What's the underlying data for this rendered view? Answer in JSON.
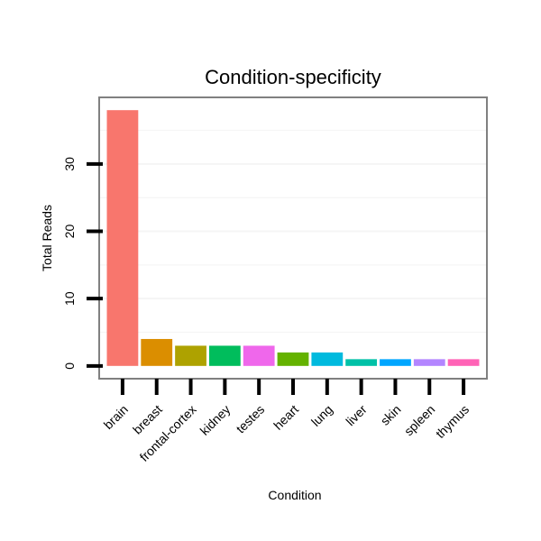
{
  "chart_data": {
    "type": "bar",
    "title": "Condition-specificity",
    "xlabel": "Condition",
    "ylabel": "Total Reads",
    "categories": [
      "brain",
      "breast",
      "frontal-cortex",
      "kidney",
      "testes",
      "heart",
      "lung",
      "liver",
      "skin",
      "spleen",
      "thymus"
    ],
    "values": [
      38,
      4,
      3,
      3,
      3,
      2,
      2,
      1,
      1,
      1,
      1
    ],
    "colors": [
      "#F8766D",
      "#DB8E00",
      "#AEA200",
      "#00BD5C",
      "#EF67EB",
      "#64B200",
      "#00BADE",
      "#00C1A7",
      "#00A6FF",
      "#B385FF",
      "#FF63B6"
    ],
    "yticks": [
      0,
      10,
      20,
      30
    ],
    "ylim": [
      -1.9,
      39.9
    ],
    "grid": true,
    "legend": "none"
  }
}
